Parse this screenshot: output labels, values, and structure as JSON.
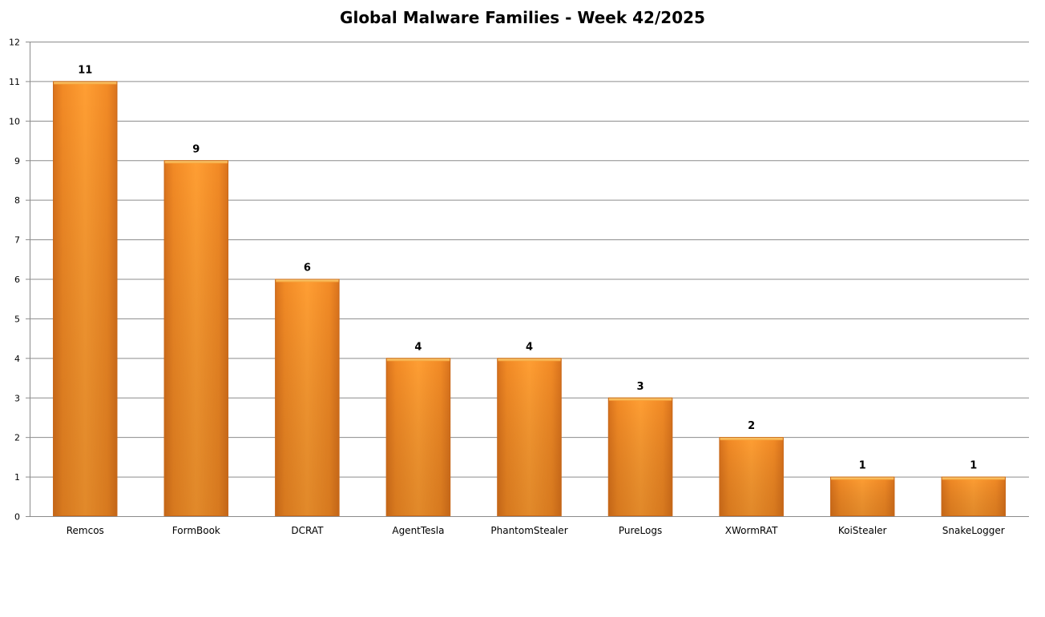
{
  "chart_data": {
    "type": "bar",
    "title": "Global Malware Families - Week 42/2025",
    "xlabel": "",
    "ylabel": "",
    "categories": [
      "Remcos",
      "FormBook",
      "DCRAT",
      "AgentTesla",
      "PhantomStealer",
      "PureLogs",
      "XWormRAT",
      "KoiStealer",
      "SnakeLogger"
    ],
    "values": [
      11,
      9,
      6,
      4,
      4,
      3,
      2,
      1,
      1
    ],
    "ylim": [
      0,
      12
    ],
    "yticks": [
      "0",
      "1",
      "2",
      "3",
      "4",
      "5",
      "6",
      "7",
      "8",
      "9",
      "10",
      "11",
      "12"
    ],
    "grid": true,
    "legend": "none",
    "data_labels": true,
    "bar_color": "#f7941d"
  }
}
